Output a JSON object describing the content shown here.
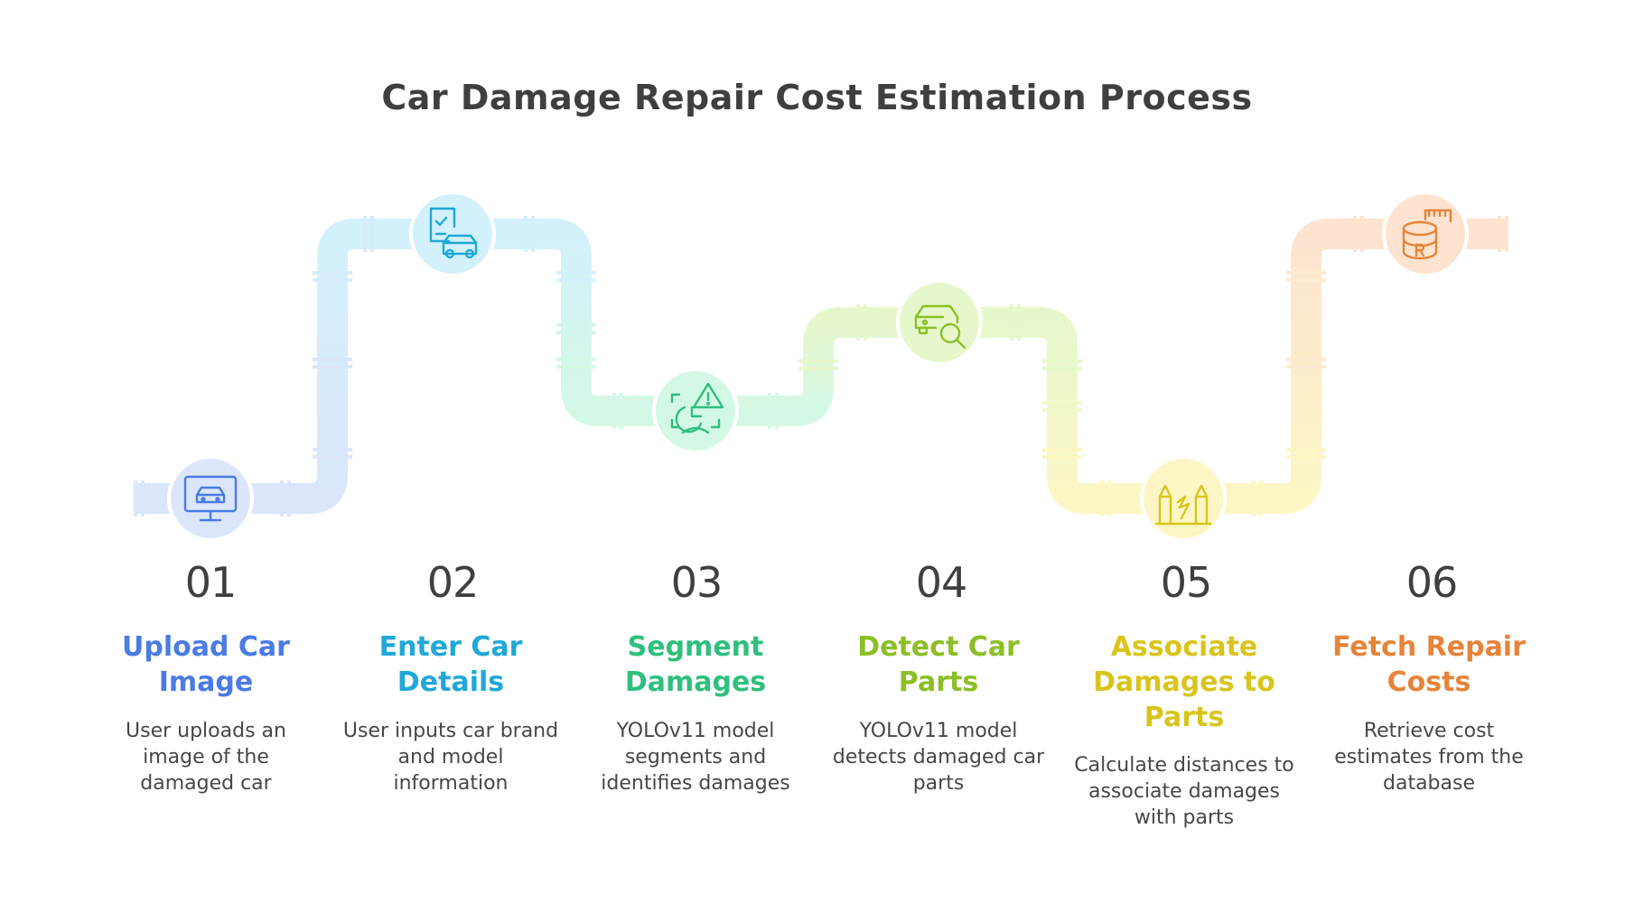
{
  "title": "Car Damage Repair Cost Estimation Process",
  "steps": [
    {
      "number": "01",
      "title": "Upload Car Image",
      "description": "User uploads an image of the damaged car",
      "color": "#4b7be5",
      "pipe_color": "#dbe6fb",
      "icon": "monitor-car-icon"
    },
    {
      "number": "02",
      "title": "Enter Car Details",
      "description": "User inputs car brand and model information",
      "color": "#1fa8d8",
      "pipe_color": "#d3f1fb",
      "icon": "form-car-icon"
    },
    {
      "number": "03",
      "title": "Segment Damages",
      "description": "YOLOv11 model segments and identifies damages",
      "color": "#2fbf7f",
      "pipe_color": "#d4f8e6",
      "icon": "segment-warning-icon"
    },
    {
      "number": "04",
      "title": "Detect Car Parts",
      "description": "YOLOv11 model detects damaged car parts",
      "color": "#8cbf26",
      "pipe_color": "#e7f7cc",
      "icon": "car-search-icon"
    },
    {
      "number": "05",
      "title": "Associate Damages to Parts",
      "description": "Calculate distances to associate damages with parts",
      "color": "#d8c51c",
      "pipe_color": "#fbf6c4",
      "icon": "damage-link-icon"
    },
    {
      "number": "06",
      "title": "Fetch Repair Costs",
      "description": "Retrieve cost estimates from the database",
      "color": "#e5843a",
      "pipe_color": "#fde3d0",
      "icon": "database-cost-icon"
    }
  ]
}
